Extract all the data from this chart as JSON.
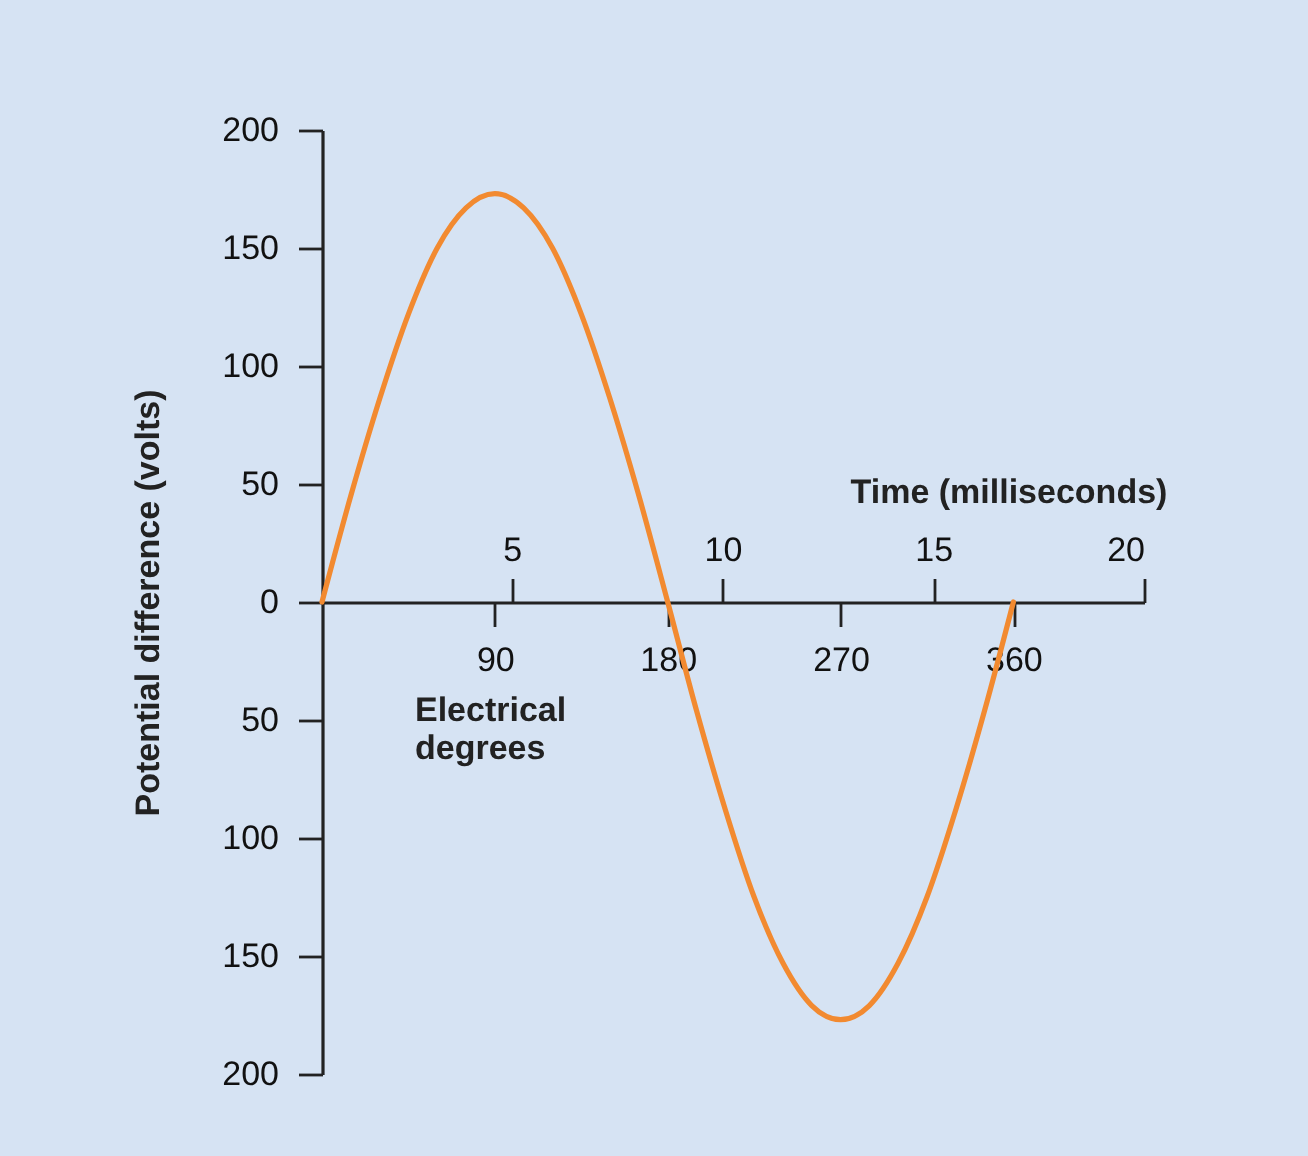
{
  "chart_data": {
    "type": "line",
    "xlabel": "Electrical degrees",
    "x2label": "Time (milliseconds)",
    "ylabel": "Potential difference (volts)",
    "x": [
      0,
      15,
      30,
      45,
      60,
      75,
      90,
      105,
      120,
      135,
      150,
      165,
      180,
      195,
      210,
      225,
      240,
      255,
      270,
      285,
      300,
      315,
      330,
      345,
      360
    ],
    "series": [
      {
        "color": "#f28a30",
        "values": [
          0,
          45,
          86,
          122,
          150,
          167,
          173,
          167,
          150,
          122,
          86,
          45,
          0,
          -46,
          -88,
          -125,
          -153,
          -171,
          -177,
          -171,
          -153,
          -125,
          -88,
          -46,
          0
        ]
      }
    ],
    "xlim": [
      0,
      428
    ],
    "xticks": [
      90,
      180,
      270,
      360
    ],
    "x2lim": [
      0.5,
      20
    ],
    "x2ticks": [
      5,
      10,
      15,
      20
    ],
    "ylim": [
      -200,
      200
    ],
    "yticks": [
      {
        "value": -200,
        "label": "200"
      },
      {
        "value": -150,
        "label": "150"
      },
      {
        "value": -100,
        "label": "100"
      },
      {
        "value": -50,
        "label": "50"
      },
      0,
      50,
      100,
      150,
      200
    ],
    "grid": false,
    "legend": false,
    "marker": "none",
    "line_style": "solid"
  }
}
